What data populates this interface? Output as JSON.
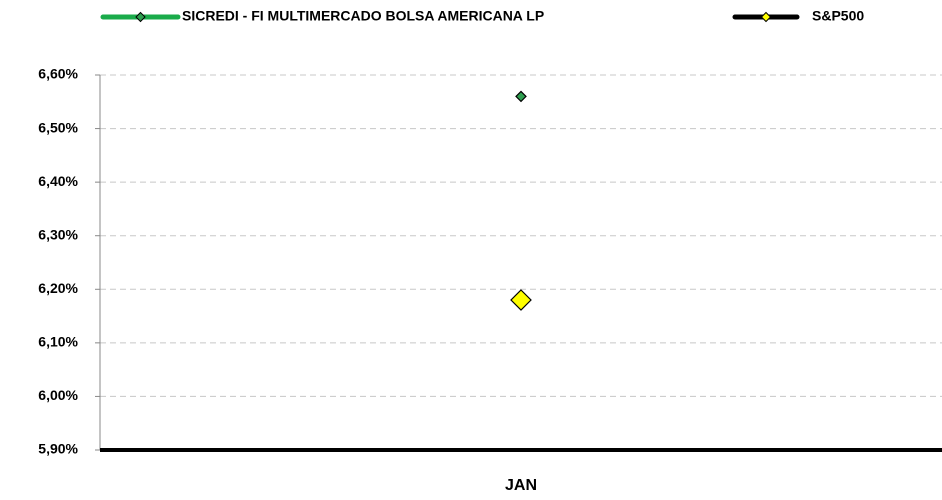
{
  "chart_data": {
    "type": "line",
    "categories": [
      "JAN"
    ],
    "series": [
      {
        "name": "SICREDI - FI MULTIMERCADO BOLSA AMERICANA LP",
        "color": "#1aab4a",
        "marker_color": "#2e9e4f",
        "values": [
          6.56
        ]
      },
      {
        "name": "S&P500",
        "color": "#000000",
        "marker_color": "#ffff00",
        "values": [
          6.18
        ]
      }
    ],
    "ylim": [
      5.9,
      6.6
    ],
    "yticks": [
      {
        "value": 5.9,
        "label": "5,90%"
      },
      {
        "value": 6.0,
        "label": "6,00%"
      },
      {
        "value": 6.1,
        "label": "6,10%"
      },
      {
        "value": 6.2,
        "label": "6,20%"
      },
      {
        "value": 6.3,
        "label": "6,30%"
      },
      {
        "value": 6.4,
        "label": "6,40%"
      },
      {
        "value": 6.5,
        "label": "6,50%"
      },
      {
        "value": 6.6,
        "label": "6,60%"
      }
    ],
    "grid": true,
    "legend": "top"
  }
}
